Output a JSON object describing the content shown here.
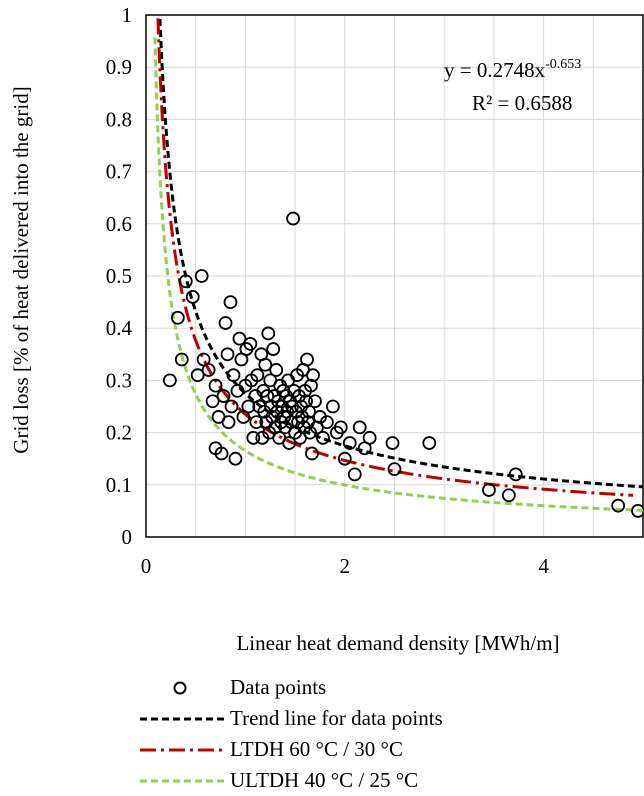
{
  "chart_data": {
    "type": "scatter",
    "xlabel": "Linear heat demand density [MWh/m]",
    "ylabel": "Grid  loss [% of heat delivered into the grid]",
    "xlim": [
      0,
      5
    ],
    "ylim": [
      0,
      1
    ],
    "x_ticks": [
      "0",
      "2",
      "4"
    ],
    "y_ticks": [
      "0",
      "0.1",
      "0.2",
      "0.3",
      "0.4",
      "0.5",
      "0.6",
      "0.7",
      "0.8",
      "0.9",
      "1"
    ],
    "grid": true,
    "equation": {
      "line1_prefix": "y = 0.2748x",
      "line1_exponent": "-0.653",
      "line2": "R² = 0.6588"
    },
    "legend_position": "bottom",
    "series": [
      {
        "name": "Data points",
        "kind": "points",
        "marker": "open-circle",
        "color": "#000000",
        "points": [
          [
            0.24,
            0.3
          ],
          [
            0.32,
            0.42
          ],
          [
            0.36,
            0.34
          ],
          [
            0.4,
            0.49
          ],
          [
            0.47,
            0.46
          ],
          [
            0.52,
            0.31
          ],
          [
            0.56,
            0.5
          ],
          [
            0.58,
            0.34
          ],
          [
            0.63,
            0.32
          ],
          [
            0.67,
            0.26
          ],
          [
            0.7,
            0.29
          ],
          [
            0.7,
            0.17
          ],
          [
            0.73,
            0.23
          ],
          [
            0.76,
            0.16
          ],
          [
            0.78,
            0.27
          ],
          [
            0.8,
            0.41
          ],
          [
            0.82,
            0.35
          ],
          [
            0.83,
            0.22
          ],
          [
            0.85,
            0.45
          ],
          [
            0.86,
            0.25
          ],
          [
            0.88,
            0.31
          ],
          [
            0.9,
            0.15
          ],
          [
            0.92,
            0.28
          ],
          [
            0.94,
            0.38
          ],
          [
            0.96,
            0.34
          ],
          [
            0.98,
            0.23
          ],
          [
            1.0,
            0.29
          ],
          [
            1.01,
            0.36
          ],
          [
            1.03,
            0.25
          ],
          [
            1.05,
            0.37
          ],
          [
            1.06,
            0.3
          ],
          [
            1.08,
            0.19
          ],
          [
            1.1,
            0.27
          ],
          [
            1.11,
            0.22
          ],
          [
            1.12,
            0.31
          ],
          [
            1.14,
            0.25
          ],
          [
            1.16,
            0.35
          ],
          [
            1.17,
            0.19
          ],
          [
            1.18,
            0.28
          ],
          [
            1.19,
            0.24
          ],
          [
            1.2,
            0.33
          ],
          [
            1.21,
            0.22
          ],
          [
            1.22,
            0.27
          ],
          [
            1.23,
            0.39
          ],
          [
            1.24,
            0.2
          ],
          [
            1.25,
            0.3
          ],
          [
            1.26,
            0.25
          ],
          [
            1.27,
            0.23
          ],
          [
            1.28,
            0.36
          ],
          [
            1.29,
            0.27
          ],
          [
            1.3,
            0.21
          ],
          [
            1.31,
            0.32
          ],
          [
            1.32,
            0.24
          ],
          [
            1.33,
            0.26
          ],
          [
            1.34,
            0.19
          ],
          [
            1.35,
            0.29
          ],
          [
            1.36,
            0.22
          ],
          [
            1.37,
            0.25
          ],
          [
            1.38,
            0.28
          ],
          [
            1.39,
            0.23
          ],
          [
            1.4,
            0.21
          ],
          [
            1.41,
            0.27
          ],
          [
            1.42,
            0.24
          ],
          [
            1.43,
            0.3
          ],
          [
            1.44,
            0.18
          ],
          [
            1.45,
            0.26
          ],
          [
            1.46,
            0.22
          ],
          [
            1.47,
            0.25
          ],
          [
            1.48,
            0.61
          ],
          [
            1.49,
            0.28
          ],
          [
            1.5,
            0.2
          ],
          [
            1.51,
            0.24
          ],
          [
            1.52,
            0.31
          ],
          [
            1.53,
            0.22
          ],
          [
            1.54,
            0.27
          ],
          [
            1.55,
            0.19
          ],
          [
            1.56,
            0.25
          ],
          [
            1.57,
            0.23
          ],
          [
            1.58,
            0.32
          ],
          [
            1.59,
            0.21
          ],
          [
            1.6,
            0.28
          ],
          [
            1.61,
            0.26
          ],
          [
            1.62,
            0.34
          ],
          [
            1.63,
            0.22
          ],
          [
            1.64,
            0.24
          ],
          [
            1.65,
            0.2
          ],
          [
            1.66,
            0.29
          ],
          [
            1.67,
            0.16
          ],
          [
            1.68,
            0.31
          ],
          [
            1.7,
            0.26
          ],
          [
            1.72,
            0.21
          ],
          [
            1.75,
            0.23
          ],
          [
            1.78,
            0.19
          ],
          [
            1.82,
            0.22
          ],
          [
            1.88,
            0.25
          ],
          [
            1.92,
            0.2
          ],
          [
            1.96,
            0.21
          ],
          [
            2.0,
            0.15
          ],
          [
            2.05,
            0.18
          ],
          [
            2.1,
            0.12
          ],
          [
            2.15,
            0.21
          ],
          [
            2.2,
            0.17
          ],
          [
            2.25,
            0.19
          ],
          [
            2.48,
            0.18
          ],
          [
            2.5,
            0.13
          ],
          [
            2.85,
            0.18
          ],
          [
            3.45,
            0.09
          ],
          [
            3.65,
            0.08
          ],
          [
            3.72,
            0.12
          ],
          [
            4.75,
            0.06
          ],
          [
            4.95,
            0.05
          ]
        ]
      },
      {
        "name": "Trend line for data points",
        "kind": "power-trend",
        "coef": 0.2748,
        "exponent": -0.653,
        "x_start": 0.14,
        "x_end": 5.0,
        "color": "#000000",
        "dash": "dashed"
      },
      {
        "name": "LTDH 60 °C / 30 °C",
        "kind": "power-trend",
        "coef": 0.235,
        "exponent": -0.68,
        "x_start": 0.12,
        "x_end": 4.9,
        "color": "#c00000",
        "dash": "dash-dot"
      },
      {
        "name": "ULTDH 40 °C / 25 °C",
        "kind": "power-trend",
        "coef": 0.165,
        "exponent": -0.73,
        "x_start": 0.09,
        "x_end": 5.0,
        "color": "#92d050",
        "dash": "dashed"
      }
    ]
  }
}
